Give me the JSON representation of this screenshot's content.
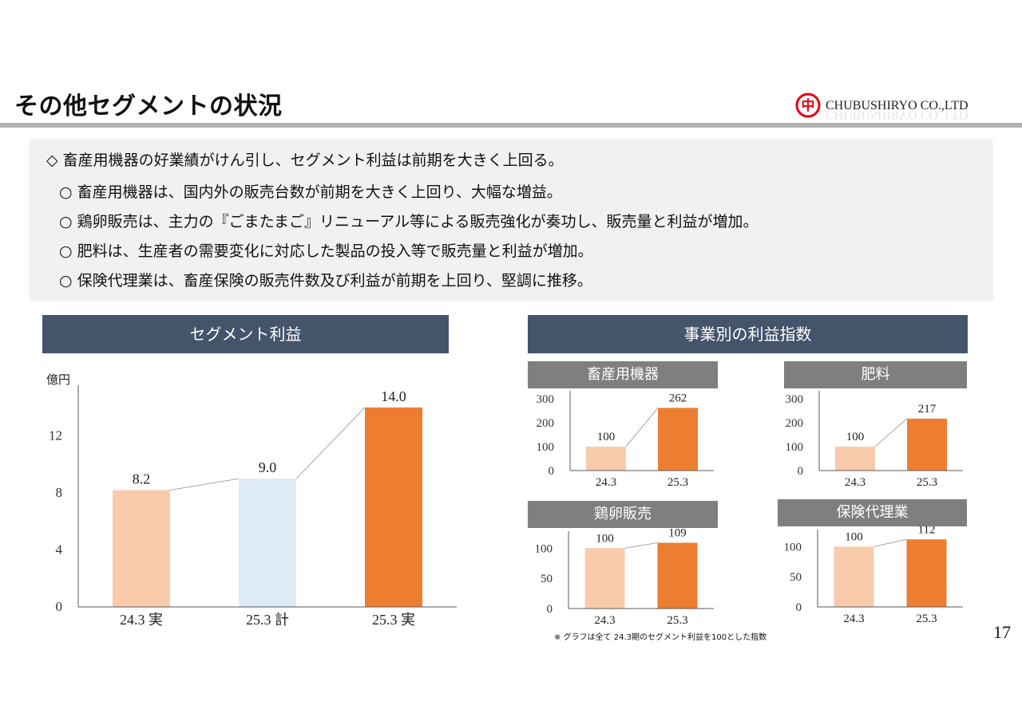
{
  "header": {
    "title": "その他セグメントの状況",
    "company": "CHUBUSHIRYO CO.,LTD",
    "logo_glyph": "中"
  },
  "summary": {
    "headline": "◇ 畜産用機器の好業績がけん引し、セグメント利益は前期を大きく上回る。",
    "bullets": [
      "○ 畜産用機器は、国内外の販売台数が前期を大きく上回り、大幅な増益。",
      "○ 鶏卵販売は、主力の『ごまたまご』リニューアル等による販売強化が奏功し、販売量と利益が増加。",
      "○ 肥料は、生産者の需要変化に対応した製品の投入等で販売量と利益が増加。",
      "○ 保険代理業は、畜産保険の販売件数及び利益が前期を上回り、堅調に推移。"
    ]
  },
  "left_panel": {
    "title": "セグメント利益"
  },
  "right_panel": {
    "title": "事業別の利益指数"
  },
  "chart_data": [
    {
      "type": "bar",
      "title": "セグメント利益",
      "ylabel": "億円",
      "categories": [
        "24.3 実",
        "25.3 計",
        "25.3 実"
      ],
      "values": [
        8.2,
        9.0,
        14.0
      ],
      "value_labels": [
        "8.2",
        "9.0",
        "14.0"
      ],
      "colors": [
        "#f8cbad",
        "#deebf7",
        "#ed7d31"
      ],
      "ylim": [
        0,
        15
      ],
      "yticks": [
        0,
        4,
        8,
        12
      ],
      "grid": false
    },
    {
      "type": "bar",
      "title": "畜産用機器",
      "categories": [
        "24.3",
        "25.3"
      ],
      "values": [
        100,
        262
      ],
      "colors": [
        "#f8cbad",
        "#ed7d31"
      ],
      "ylim": [
        0,
        300
      ],
      "yticks": [
        0,
        100,
        200,
        300
      ]
    },
    {
      "type": "bar",
      "title": "肥料",
      "categories": [
        "24.3",
        "25.3"
      ],
      "values": [
        100,
        217
      ],
      "colors": [
        "#f8cbad",
        "#ed7d31"
      ],
      "ylim": [
        0,
        300
      ],
      "yticks": [
        0,
        100,
        200,
        300
      ]
    },
    {
      "type": "bar",
      "title": "鶏卵販売",
      "categories": [
        "24.3",
        "25.3"
      ],
      "values": [
        100,
        109
      ],
      "colors": [
        "#f8cbad",
        "#ed7d31"
      ],
      "ylim": [
        0,
        115
      ],
      "yticks": [
        0,
        50,
        100
      ]
    },
    {
      "type": "bar",
      "title": "保険代理業",
      "categories": [
        "24.3",
        "25.3"
      ],
      "values": [
        100,
        112
      ],
      "colors": [
        "#f8cbad",
        "#ed7d31"
      ],
      "ylim": [
        0,
        115
      ],
      "yticks": [
        0,
        50,
        100
      ]
    }
  ],
  "footnote": "※ グラフは全て 24.3期のセグメント利益を100とした指数",
  "page_number": "17"
}
